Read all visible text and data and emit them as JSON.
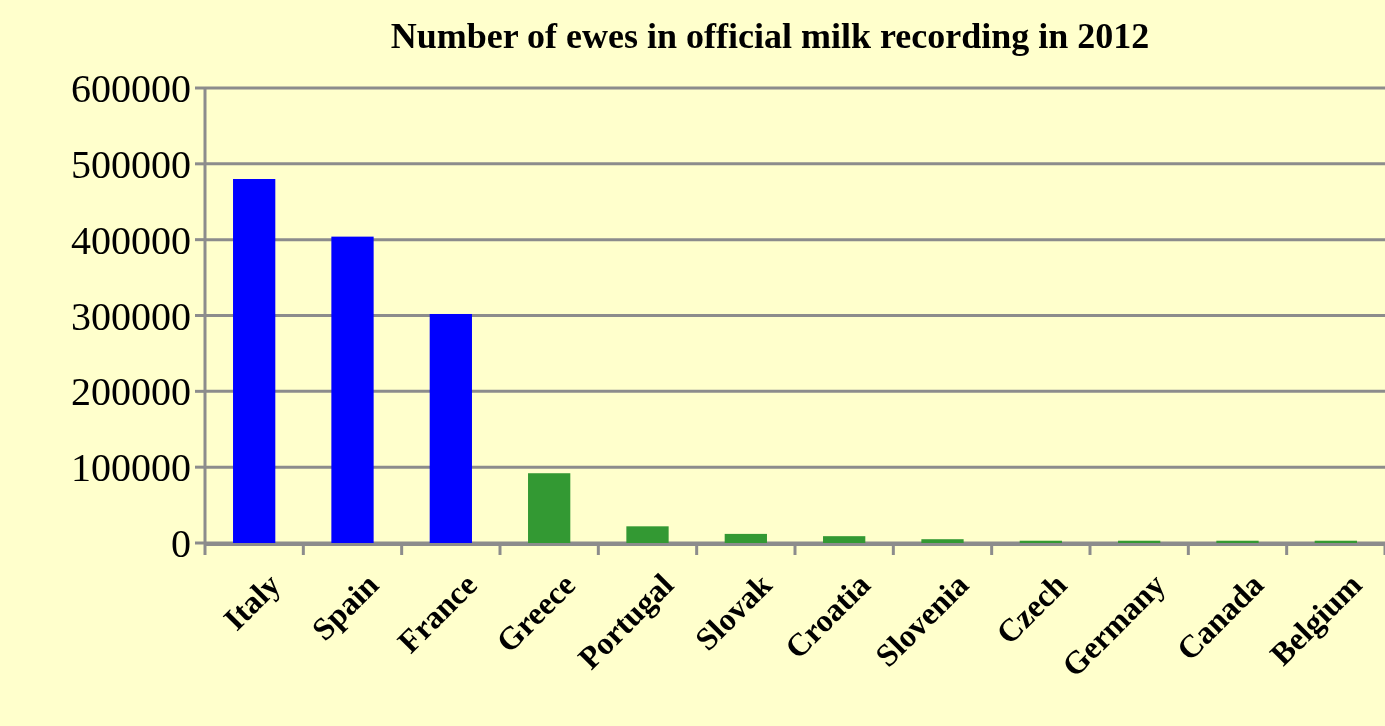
{
  "chart_data": {
    "type": "bar",
    "title": "Number of ewes in official milk recording in 2012",
    "categories": [
      "Italy",
      "Spain",
      "France",
      "Greece",
      "Portugal",
      "Slovak",
      "Croatia",
      "Slovenia",
      "Czech",
      "Germany",
      "Canada",
      "Belgium"
    ],
    "values": [
      480000,
      404000,
      302000,
      92000,
      22000,
      12000,
      9000,
      5000,
      3000,
      3000,
      3000,
      3000
    ],
    "colors": [
      "#0000ff",
      "#0000ff",
      "#0000ff",
      "#339933",
      "#339933",
      "#339933",
      "#339933",
      "#339933",
      "#339933",
      "#339933",
      "#339933",
      "#339933"
    ],
    "ylim": [
      0,
      600000
    ],
    "yticks": [
      0,
      100000,
      200000,
      300000,
      400000,
      500000,
      600000
    ],
    "grid": "y"
  }
}
